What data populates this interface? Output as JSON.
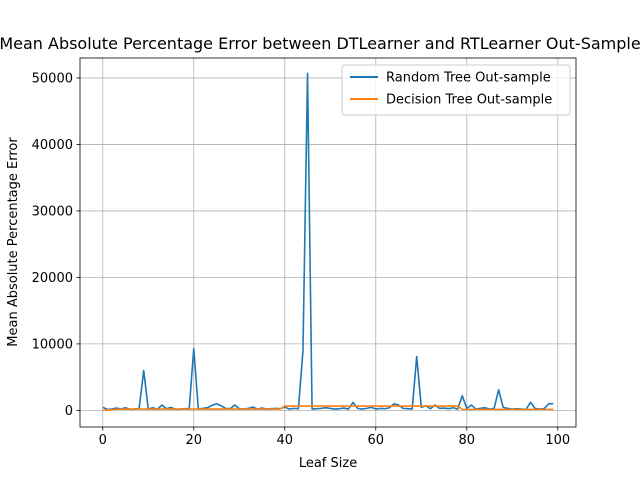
{
  "chart_data": {
    "type": "line",
    "title": "Mean Absolute Percentage Error between DTLearner and RTLearner Out-Sample",
    "xlabel": "Leaf Size",
    "ylabel": "Mean Absolute Percentage Error",
    "xlim": [
      -5,
      104
    ],
    "ylim": [
      -2500,
      53000
    ],
    "xticks": [
      0,
      20,
      40,
      60,
      80,
      100
    ],
    "yticks": [
      0,
      10000,
      20000,
      30000,
      40000,
      50000
    ],
    "grid": true,
    "legend_position": "top-right",
    "x": [
      0,
      1,
      2,
      3,
      4,
      5,
      6,
      7,
      8,
      9,
      10,
      11,
      12,
      13,
      14,
      15,
      16,
      17,
      18,
      19,
      20,
      21,
      22,
      23,
      24,
      25,
      26,
      27,
      28,
      29,
      30,
      31,
      32,
      33,
      34,
      35,
      36,
      37,
      38,
      39,
      40,
      41,
      42,
      43,
      44,
      45,
      46,
      47,
      48,
      49,
      50,
      51,
      52,
      53,
      54,
      55,
      56,
      57,
      58,
      59,
      60,
      61,
      62,
      63,
      64,
      65,
      66,
      67,
      68,
      69,
      70,
      71,
      72,
      73,
      74,
      75,
      76,
      77,
      78,
      79,
      80,
      81,
      82,
      83,
      84,
      85,
      86,
      87,
      88,
      89,
      90,
      91,
      92,
      93,
      94,
      95,
      96,
      97,
      98,
      99
    ],
    "series": [
      {
        "name": "Random Tree Out-sample",
        "color": "#1f77b4",
        "values": [
          450,
          150,
          200,
          350,
          200,
          400,
          150,
          200,
          300,
          6000,
          200,
          400,
          150,
          800,
          250,
          450,
          150,
          200,
          250,
          250,
          9300,
          200,
          300,
          400,
          750,
          1000,
          700,
          300,
          250,
          800,
          250,
          200,
          300,
          500,
          200,
          350,
          200,
          250,
          300,
          250,
          500,
          200,
          300,
          250,
          9000,
          50700,
          200,
          250,
          300,
          400,
          300,
          200,
          250,
          350,
          200,
          1200,
          300,
          200,
          300,
          450,
          200,
          300,
          250,
          400,
          1000,
          800,
          300,
          250,
          200,
          8100,
          450,
          700,
          250,
          800,
          300,
          350,
          250,
          400,
          200,
          2200,
          300,
          800,
          200,
          300,
          400,
          200,
          300,
          3100,
          450,
          300,
          200,
          250,
          200,
          150,
          1200,
          300,
          200,
          250,
          1000,
          1000
        ]
      },
      {
        "name": "Decision Tree Out-sample",
        "color": "#ff7f0e",
        "values": [
          0,
          50,
          100,
          150,
          180,
          200,
          200,
          200,
          200,
          200,
          200,
          200,
          200,
          200,
          200,
          200,
          200,
          200,
          200,
          200,
          200,
          200,
          200,
          200,
          200,
          200,
          200,
          200,
          200,
          200,
          200,
          200,
          200,
          200,
          200,
          200,
          200,
          200,
          200,
          200,
          650,
          650,
          650,
          650,
          650,
          650,
          650,
          650,
          650,
          650,
          650,
          650,
          650,
          650,
          650,
          650,
          650,
          650,
          650,
          650,
          650,
          650,
          650,
          650,
          650,
          650,
          650,
          650,
          650,
          650,
          650,
          650,
          650,
          650,
          650,
          650,
          650,
          650,
          650,
          150,
          150,
          150,
          150,
          150,
          150,
          150,
          150,
          150,
          150,
          150,
          150,
          150,
          150,
          150,
          150,
          150,
          150,
          150,
          150,
          150
        ]
      }
    ]
  }
}
